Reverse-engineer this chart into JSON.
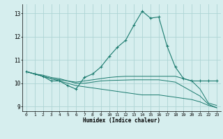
{
  "xlabel": "Humidex (Indice chaleur)",
  "background_color": "#d6eeee",
  "grid_color": "#aed4d4",
  "line_color": "#1a7a6e",
  "xlim": [
    -0.5,
    23.5
  ],
  "ylim": [
    8.8,
    13.4
  ],
  "yticks": [
    9,
    10,
    11,
    12,
    13
  ],
  "xticks": [
    0,
    1,
    2,
    3,
    4,
    5,
    6,
    7,
    8,
    9,
    10,
    11,
    12,
    13,
    14,
    15,
    16,
    17,
    18,
    19,
    20,
    21,
    22,
    23
  ],
  "curves": [
    {
      "x": [
        0,
        1,
        2,
        3,
        4,
        5,
        6,
        7,
        8,
        9,
        10,
        11,
        12,
        13,
        14,
        15,
        16,
        17,
        18,
        19,
        20,
        21,
        22,
        23
      ],
      "y": [
        10.5,
        10.4,
        10.3,
        10.1,
        10.1,
        9.9,
        9.75,
        10.25,
        10.4,
        10.7,
        11.15,
        11.55,
        11.85,
        12.5,
        13.1,
        12.8,
        12.85,
        11.6,
        10.7,
        10.2,
        10.1,
        10.1,
        10.1,
        10.1
      ],
      "marker": true
    },
    {
      "x": [
        0,
        1,
        2,
        3,
        4,
        5,
        6,
        7,
        8,
        9,
        10,
        11,
        12,
        13,
        14,
        15,
        16,
        17,
        18,
        19,
        20,
        21,
        22,
        23
      ],
      "y": [
        10.5,
        10.4,
        10.3,
        10.2,
        10.15,
        10.1,
        10.05,
        10.1,
        10.15,
        10.2,
        10.25,
        10.28,
        10.3,
        10.3,
        10.3,
        10.3,
        10.3,
        10.3,
        10.3,
        10.2,
        10.1,
        9.75,
        9.15,
        9.05
      ],
      "marker": false
    },
    {
      "x": [
        0,
        1,
        2,
        3,
        4,
        5,
        6,
        7,
        8,
        9,
        10,
        11,
        12,
        13,
        14,
        15,
        16,
        17,
        18,
        19,
        20,
        21,
        22,
        23
      ],
      "y": [
        10.5,
        10.4,
        10.35,
        10.25,
        10.2,
        10.1,
        10.0,
        10.0,
        10.05,
        10.1,
        10.12,
        10.13,
        10.14,
        10.15,
        10.15,
        10.15,
        10.15,
        10.1,
        10.05,
        9.85,
        9.65,
        9.45,
        9.1,
        8.95
      ],
      "marker": false
    },
    {
      "x": [
        0,
        1,
        2,
        3,
        4,
        5,
        6,
        7,
        8,
        9,
        10,
        11,
        12,
        13,
        14,
        15,
        16,
        17,
        18,
        19,
        20,
        21,
        22,
        23
      ],
      "y": [
        10.5,
        10.4,
        10.3,
        10.2,
        10.1,
        10.0,
        9.9,
        9.85,
        9.8,
        9.75,
        9.7,
        9.65,
        9.6,
        9.55,
        9.5,
        9.5,
        9.5,
        9.45,
        9.4,
        9.35,
        9.3,
        9.2,
        9.05,
        8.95
      ],
      "marker": false
    }
  ]
}
